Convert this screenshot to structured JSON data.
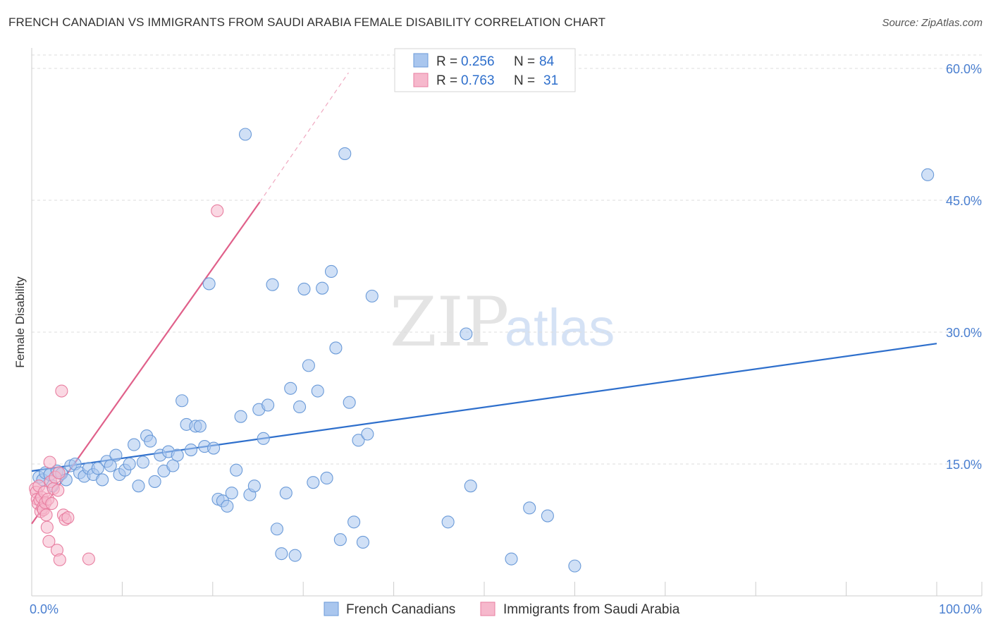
{
  "title": "FRENCH CANADIAN VS IMMIGRANTS FROM SAUDI ARABIA FEMALE DISABILITY CORRELATION CHART",
  "source": "Source: ZipAtlas.com",
  "watermark": {
    "part1": "ZIP",
    "part2": "atlas"
  },
  "colors": {
    "blue_fill": "#a9c6ee",
    "blue_stroke": "#6a9ad8",
    "blue_line": "#2e6fcc",
    "pink_fill": "#f6b8cc",
    "pink_stroke": "#e87ea0",
    "pink_line": "#e0608a",
    "grid": "#dddddd",
    "tick_text": "#4a7fd0"
  },
  "legend": {
    "rows": [
      {
        "r_label": "R = ",
        "r_value": "0.256",
        "n_label": "N = ",
        "n_value": "84"
      },
      {
        "r_label": "R = ",
        "r_value": "0.763",
        "n_label": "N = ",
        "n_value": "31"
      }
    ]
  },
  "chart_data": {
    "type": "scatter",
    "title": "FRENCH CANADIAN VS IMMIGRANTS FROM SAUDI ARABIA FEMALE DISABILITY CORRELATION CHART",
    "xlabel": "",
    "ylabel": "Female Disability",
    "xlim": [
      0,
      100
    ],
    "ylim": [
      0,
      60
    ],
    "x_tick_labels": [
      "0.0%",
      "100.0%"
    ],
    "y_ticks": [
      15,
      30,
      45,
      60
    ],
    "y_tick_labels": [
      "15.0%",
      "30.0%",
      "45.0%",
      "60.0%"
    ],
    "grid": true,
    "legend_position": "top-center",
    "series": [
      {
        "name": "French Canadians",
        "r": 0.256,
        "n": 84,
        "trend": {
          "x": [
            0,
            100
          ],
          "y": [
            14.2,
            28.7
          ]
        },
        "points": [
          [
            0.8,
            13.5
          ],
          [
            1.2,
            13.2
          ],
          [
            1.5,
            14.0
          ],
          [
            2.0,
            13.8
          ],
          [
            2.3,
            12.5
          ],
          [
            2.8,
            14.2
          ],
          [
            3.3,
            13.9
          ],
          [
            3.8,
            13.2
          ],
          [
            4.3,
            14.8
          ],
          [
            4.8,
            15.0
          ],
          [
            5.3,
            14.0
          ],
          [
            5.8,
            13.6
          ],
          [
            6.3,
            14.5
          ],
          [
            6.8,
            13.8
          ],
          [
            7.3,
            14.5
          ],
          [
            7.8,
            13.2
          ],
          [
            8.3,
            15.3
          ],
          [
            8.7,
            14.8
          ],
          [
            9.3,
            16.0
          ],
          [
            9.7,
            13.8
          ],
          [
            10.3,
            14.3
          ],
          [
            10.8,
            15.0
          ],
          [
            11.3,
            17.2
          ],
          [
            11.8,
            12.5
          ],
          [
            12.3,
            15.2
          ],
          [
            12.7,
            18.2
          ],
          [
            13.1,
            17.6
          ],
          [
            13.6,
            13.0
          ],
          [
            14.2,
            16.0
          ],
          [
            14.6,
            14.2
          ],
          [
            15.1,
            16.4
          ],
          [
            15.6,
            14.8
          ],
          [
            16.1,
            16.0
          ],
          [
            16.6,
            22.2
          ],
          [
            17.1,
            19.5
          ],
          [
            17.6,
            16.6
          ],
          [
            18.1,
            19.3
          ],
          [
            18.6,
            19.3
          ],
          [
            19.1,
            17.0
          ],
          [
            19.6,
            35.5
          ],
          [
            20.1,
            16.8
          ],
          [
            20.6,
            11.0
          ],
          [
            21.1,
            10.8
          ],
          [
            21.6,
            10.2
          ],
          [
            22.1,
            11.7
          ],
          [
            22.6,
            14.3
          ],
          [
            23.1,
            20.4
          ],
          [
            23.6,
            52.5
          ],
          [
            24.1,
            11.5
          ],
          [
            24.6,
            12.5
          ],
          [
            25.1,
            21.2
          ],
          [
            25.6,
            17.9
          ],
          [
            26.1,
            21.7
          ],
          [
            26.6,
            35.4
          ],
          [
            27.1,
            7.6
          ],
          [
            27.6,
            4.8
          ],
          [
            28.1,
            11.7
          ],
          [
            28.6,
            23.6
          ],
          [
            29.1,
            4.6
          ],
          [
            29.6,
            21.5
          ],
          [
            30.1,
            34.9
          ],
          [
            30.6,
            26.2
          ],
          [
            31.1,
            12.9
          ],
          [
            31.6,
            23.3
          ],
          [
            32.1,
            35.0
          ],
          [
            32.6,
            13.4
          ],
          [
            33.1,
            36.9
          ],
          [
            33.6,
            28.2
          ],
          [
            34.1,
            6.4
          ],
          [
            34.6,
            50.3
          ],
          [
            35.1,
            22.0
          ],
          [
            35.6,
            8.4
          ],
          [
            36.1,
            17.7
          ],
          [
            36.6,
            6.1
          ],
          [
            37.1,
            18.4
          ],
          [
            37.6,
            34.1
          ],
          [
            46.0,
            8.4
          ],
          [
            48.0,
            29.8
          ],
          [
            48.5,
            12.5
          ],
          [
            53.0,
            4.2
          ],
          [
            55.0,
            10.0
          ],
          [
            57.0,
            9.1
          ],
          [
            60.0,
            3.4
          ],
          [
            99.0,
            47.9
          ]
        ]
      },
      {
        "name": "Immigrants from Saudi Arabia",
        "r": 0.763,
        "n": 31,
        "trend": {
          "x": [
            0,
            25.2
          ],
          "y": [
            8.2,
            44.8
          ]
        },
        "trend_extension": {
          "x": [
            25.2,
            35.0
          ],
          "y": [
            44.8,
            59.5
          ]
        },
        "points": [
          [
            0.4,
            12.2
          ],
          [
            0.5,
            11.8
          ],
          [
            0.6,
            11.0
          ],
          [
            0.7,
            10.5
          ],
          [
            0.8,
            12.5
          ],
          [
            0.9,
            10.9
          ],
          [
            1.0,
            9.6
          ],
          [
            1.1,
            11.2
          ],
          [
            1.2,
            10.0
          ],
          [
            1.3,
            9.8
          ],
          [
            1.4,
            11.8
          ],
          [
            1.5,
            10.6
          ],
          [
            1.6,
            9.2
          ],
          [
            1.7,
            7.8
          ],
          [
            1.8,
            11.0
          ],
          [
            1.9,
            6.2
          ],
          [
            2.0,
            15.2
          ],
          [
            2.1,
            13.0
          ],
          [
            2.2,
            10.5
          ],
          [
            2.4,
            12.2
          ],
          [
            2.6,
            13.5
          ],
          [
            2.8,
            5.2
          ],
          [
            2.9,
            12.0
          ],
          [
            3.0,
            14.0
          ],
          [
            3.1,
            4.1
          ],
          [
            3.3,
            23.3
          ],
          [
            3.5,
            9.2
          ],
          [
            3.7,
            8.7
          ],
          [
            4.0,
            8.9
          ],
          [
            6.3,
            4.2
          ],
          [
            20.5,
            43.8
          ]
        ]
      }
    ]
  }
}
